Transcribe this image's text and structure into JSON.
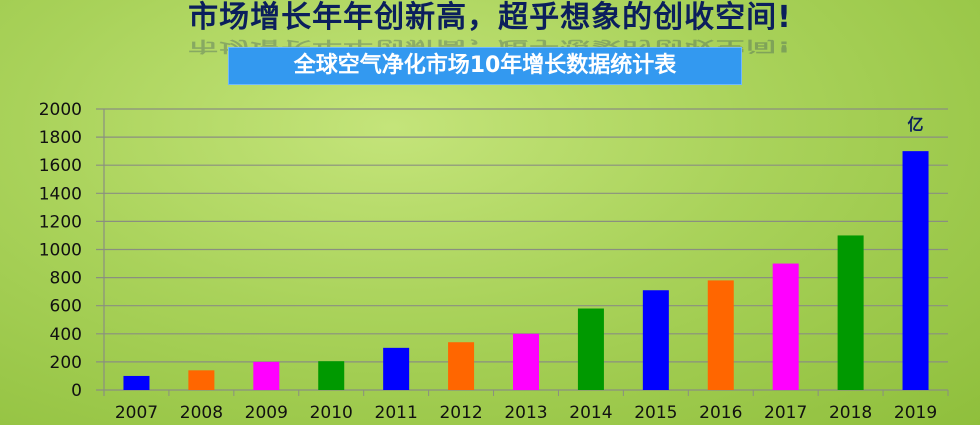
{
  "header": {
    "title": "市场增长年年创新高，超乎想象的创收空间!",
    "subtitle": "全球空气净化市场10年增长数据统计表"
  },
  "chart_data": {
    "type": "bar",
    "title": "全球空气净化市场10年增长数据统计表",
    "unit_label": "亿",
    "categories": [
      "2007",
      "2008",
      "2009",
      "2010",
      "2011",
      "2012",
      "2013",
      "2014",
      "2015",
      "2016",
      "2017",
      "2018",
      "2019"
    ],
    "values": [
      100,
      140,
      200,
      205,
      300,
      340,
      400,
      580,
      710,
      780,
      900,
      1100,
      1700
    ],
    "bar_colors": [
      "#0000ff",
      "#ff6600",
      "#ff00ff",
      "#009900",
      "#0000ff",
      "#ff6600",
      "#ff00ff",
      "#009900",
      "#0000ff",
      "#ff6600",
      "#ff00ff",
      "#009900",
      "#0000ff"
    ],
    "yticks": [
      0,
      200,
      400,
      600,
      800,
      1000,
      1200,
      1400,
      1600,
      1800,
      2000
    ],
    "ylim": [
      0,
      2000
    ],
    "grid": true,
    "xlabel": "",
    "ylabel": ""
  }
}
